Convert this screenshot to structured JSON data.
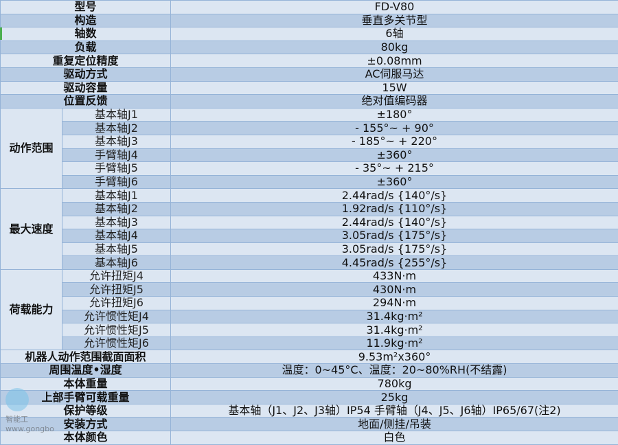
{
  "colors": {
    "row_light": "#dce6f2",
    "row_dark": "#b8cce4",
    "border": "#95b3d7"
  },
  "rows_top": [
    {
      "label": "型号",
      "value": "FD-V80"
    },
    {
      "label": "构造",
      "value": "垂直多关节型"
    },
    {
      "label": "轴数",
      "value": "6轴"
    },
    {
      "label": "负载",
      "value": "80kg"
    },
    {
      "label": "重复定位精度",
      "value": "±0.08mm"
    },
    {
      "label": "驱动方式",
      "value": "AC伺服马达"
    },
    {
      "label": "驱动容量",
      "value": "15W"
    },
    {
      "label": "位置反馈",
      "value": "绝对值编码器"
    }
  ],
  "groups": [
    {
      "label": "动作范围",
      "items": [
        {
          "sub": "基本轴J1",
          "value": "±180°"
        },
        {
          "sub": "基本轴J2",
          "value": "- 155°~ + 90°"
        },
        {
          "sub": "基本轴J3",
          "value": "- 185°~ + 220°"
        },
        {
          "sub": "手臂轴J4",
          "value": "±360°"
        },
        {
          "sub": "手臂轴J5",
          "value": "- 35°~ + 215°"
        },
        {
          "sub": "手臂轴J6",
          "value": "±360°"
        }
      ]
    },
    {
      "label": "最大速度",
      "items": [
        {
          "sub": "基本轴J1",
          "value": "2.44rad/s {140°/s}"
        },
        {
          "sub": "基本轴J2",
          "value": "1.92rad/s {110°/s}"
        },
        {
          "sub": "基本轴J3",
          "value": "2.44rad/s {140°/s}"
        },
        {
          "sub": "基本轴J4",
          "value": "3.05rad/s {175°/s}"
        },
        {
          "sub": "基本轴J5",
          "value": "3.05rad/s {175°/s}"
        },
        {
          "sub": "基本轴J6",
          "value": "4.45rad/s {255°/s}"
        }
      ]
    },
    {
      "label": "荷载能力",
      "items": [
        {
          "sub": "允许扭矩J4",
          "value": "433N·m"
        },
        {
          "sub": "允许扭矩J5",
          "value": "430N·m"
        },
        {
          "sub": "允许扭矩J6",
          "value": "294N·m"
        },
        {
          "sub": "允许惯性矩J4",
          "value": "31.4kg·m²"
        },
        {
          "sub": "允许惯性矩J5",
          "value": "31.4kg·m²"
        },
        {
          "sub": "允许惯性矩J6",
          "value": "11.9kg·m²"
        }
      ]
    }
  ],
  "rows_bottom": [
    {
      "label": "机器人动作范围截面面积",
      "value": "9.53m²x360°"
    },
    {
      "label": "周围温度•湿度",
      "value": "温度：0~45°C、温度：20~80%RH(不结露)"
    },
    {
      "label": "本体重量",
      "value": "780kg"
    },
    {
      "label": "上部手臂可载重量",
      "value": "25kg"
    },
    {
      "label": "保护等级",
      "value": "基本轴（J1、J2、J3轴）IP54 手臂轴（J4、J5、J6轴）IP65/67(注2)"
    },
    {
      "label": "安装方式",
      "value": "地面/侧挂/吊装"
    },
    {
      "label": "本体颜色",
      "value": "白色"
    }
  ],
  "watermark": {
    "text1": "智能工",
    "text2": "www.gongbo"
  }
}
